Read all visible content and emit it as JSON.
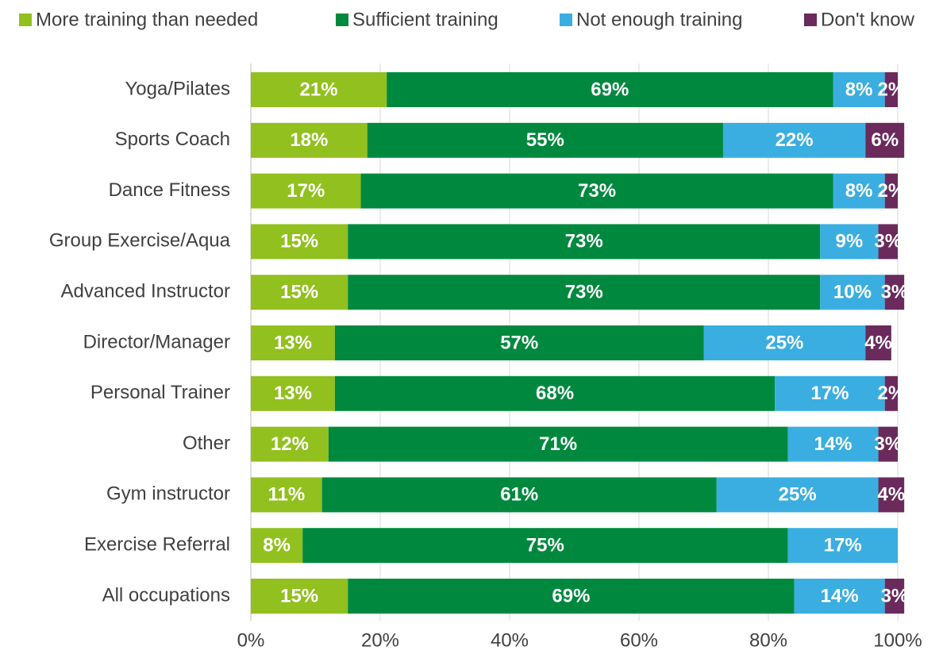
{
  "chart_data": {
    "type": "stacked-bar-horizontal",
    "categories": [
      "Yoga/Pilates",
      "Sports Coach",
      "Dance Fitness",
      "Group Exercise/Aqua",
      "Advanced Instructor",
      "Director/Manager",
      "Personal Trainer",
      "Other",
      "Gym instructor",
      "Exercise Referral",
      "All occupations"
    ],
    "series": [
      {
        "name": "More training than needed",
        "color": "#92c01f",
        "values": [
          21,
          18,
          17,
          15,
          15,
          13,
          13,
          12,
          11,
          8,
          15
        ],
        "value_labels": [
          "21%",
          "18%",
          "17%",
          "15%",
          "15%",
          "13%",
          "13%",
          "12%",
          "11%",
          "8%",
          "15%"
        ]
      },
      {
        "name": "Sufficient training",
        "color": "#00893e",
        "values": [
          69,
          55,
          73,
          73,
          73,
          57,
          68,
          71,
          61,
          75,
          69
        ],
        "value_labels": [
          "69%",
          "55%",
          "73%",
          "73%",
          "73%",
          "57%",
          "68%",
          "71%",
          "61%",
          "75%",
          "69%"
        ]
      },
      {
        "name": "Not enough training",
        "color": "#3aaee0",
        "values": [
          8,
          22,
          8,
          9,
          10,
          25,
          17,
          14,
          25,
          17,
          14
        ],
        "value_labels": [
          "8%",
          "22%",
          "8%",
          "9%",
          "10%",
          "25%",
          "17%",
          "14%",
          "25%",
          "17%",
          "14%"
        ]
      },
      {
        "name": "Don't know",
        "color": "#6b2a5c",
        "values": [
          2,
          6,
          2,
          3,
          3,
          4,
          2,
          3,
          4,
          null,
          3
        ],
        "value_labels": [
          "2%",
          "6%",
          "2%",
          "3%",
          "3%",
          "4%",
          "2%",
          "3%",
          "4%",
          null,
          "3%"
        ]
      }
    ],
    "xlim": [
      0,
      100
    ],
    "xticks": [
      {
        "value": 0,
        "label": "0%"
      },
      {
        "value": 20,
        "label": "20%"
      },
      {
        "value": 40,
        "label": "40%"
      },
      {
        "value": 60,
        "label": "60%"
      },
      {
        "value": 80,
        "label": "80%"
      },
      {
        "value": 100,
        "label": "100%"
      }
    ],
    "grid": true,
    "legend": "top"
  }
}
